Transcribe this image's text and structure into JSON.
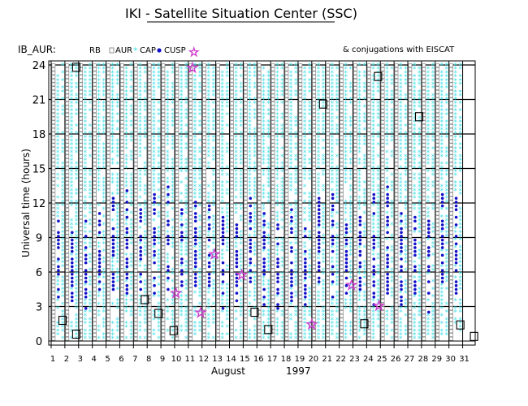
{
  "chart_data": {
    "type": "scatter",
    "title": "IKI - Satellite Situation Center (SSC)",
    "satellite": "IB_AUR:",
    "legend": [
      {
        "label": "RB",
        "marker": "none"
      },
      {
        "label": "AUR",
        "marker": "square"
      },
      {
        "label": "CAP",
        "marker": "cyan-star"
      },
      {
        "label": "CUSP",
        "marker": "blue-dot"
      }
    ],
    "legend_magenta_star_label": "& conjugations with EISCAT",
    "ylabel": "Universal time (hours)",
    "xlabel_month": "August",
    "xlabel_year": "1997",
    "x_ticks": [
      "1",
      "2",
      "3",
      "4",
      "5",
      "6",
      "7",
      "8",
      "9",
      "10",
      "11",
      "12",
      "13",
      "14",
      "15",
      "16",
      "17",
      "18",
      "19",
      "20",
      "21",
      "22",
      "23",
      "24",
      "25",
      "26",
      "27",
      "28",
      "29",
      "30",
      "31"
    ],
    "y_ticks": [
      "0",
      "3",
      "6",
      "9",
      "12",
      "15",
      "18",
      "21",
      "24"
    ],
    "xlim": [
      1,
      31.5
    ],
    "ylim": [
      0,
      24
    ],
    "grid": {
      "vertical": true,
      "horizontal_hours": [
        3,
        6,
        9,
        12,
        15,
        18,
        21,
        24
      ]
    },
    "colors": {
      "cap": "#40e0e8",
      "cusp": "#1010c8",
      "eiscat": "#d040d0",
      "aur": "#888888"
    },
    "day_columns": {
      "note": "one vertical column per day (left) and per night pass (right); hours covered by each region type",
      "days": [
        2,
        3,
        4,
        5,
        6,
        7,
        8,
        9,
        10,
        11,
        12,
        13,
        14,
        15,
        16,
        17,
        18,
        19,
        20,
        21,
        22,
        23,
        24,
        25,
        26,
        27,
        28,
        29,
        30,
        31
      ]
    },
    "eiscat_conjugations": [
      {
        "day": 10,
        "hour": 4.2
      },
      {
        "day": 11.8,
        "hour": 2.5
      },
      {
        "day": 12.8,
        "hour": 7.6
      },
      {
        "day": 14.8,
        "hour": 5.8
      },
      {
        "day": 19.9,
        "hour": 1.5
      },
      {
        "day": 22.8,
        "hour": 4.9
      },
      {
        "day": 24.8,
        "hour": 3.1
      },
      {
        "day": 11.2,
        "hour": 23.8
      }
    ],
    "rb_boxes": [
      {
        "day": 1.8,
        "hour": 1.8
      },
      {
        "day": 2.8,
        "hour": 0.6
      },
      {
        "day": 2.8,
        "hour": 23.8
      },
      {
        "day": 7.8,
        "hour": 3.6
      },
      {
        "day": 8.8,
        "hour": 2.4
      },
      {
        "day": 9.9,
        "hour": 0.9
      },
      {
        "day": 15.8,
        "hour": 2.5
      },
      {
        "day": 16.8,
        "hour": 1.0
      },
      {
        "day": 23.8,
        "hour": 1.5
      },
      {
        "day": 24.8,
        "hour": 23.0
      },
      {
        "day": 27.8,
        "hour": 19.5
      },
      {
        "day": 30.8,
        "hour": 1.4
      },
      {
        "day": 31.8,
        "hour": 0.4
      },
      {
        "day": 20.8,
        "hour": 20.6
      }
    ]
  }
}
